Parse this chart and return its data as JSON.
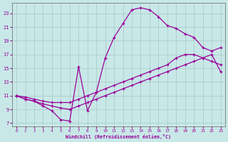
{
  "xlabel": "Windchill (Refroidissement éolien,°C)",
  "bg_color": "#c8e8e8",
  "line_color": "#990099",
  "grid_color": "#a8c8c8",
  "xlim": [
    -0.5,
    23.5
  ],
  "ylim": [
    6.5,
    24.5
  ],
  "xticks": [
    0,
    1,
    2,
    3,
    4,
    5,
    6,
    7,
    8,
    9,
    10,
    11,
    12,
    13,
    14,
    15,
    16,
    17,
    18,
    19,
    20,
    21,
    22,
    23
  ],
  "yticks": [
    7,
    9,
    11,
    13,
    15,
    17,
    19,
    21,
    23
  ],
  "series": [
    {
      "x": [
        0,
        1,
        2,
        3,
        4,
        5,
        6,
        7,
        8,
        9,
        10,
        11,
        12,
        13,
        14,
        15,
        16,
        17,
        18,
        19,
        20,
        21,
        22,
        23
      ],
      "y": [
        11,
        10.5,
        10.2,
        9.5,
        8.8,
        7.5,
        7.3,
        15.2,
        8.8,
        11.5,
        16.5,
        19.5,
        21.5,
        23.5,
        23.8,
        23.5,
        22.5,
        21.2,
        20.8,
        20.0,
        19.5,
        18.0,
        17.5,
        18.0
      ]
    },
    {
      "x": [
        0,
        1,
        2,
        3,
        4,
        5,
        6,
        7,
        8,
        9,
        10,
        11,
        12,
        13,
        14,
        15,
        16,
        17,
        18,
        19,
        20,
        21,
        22,
        23
      ],
      "y": [
        11,
        10.8,
        10.5,
        10.2,
        10.0,
        10.0,
        10.0,
        10.5,
        11.0,
        11.5,
        12.0,
        12.5,
        13.0,
        13.5,
        14.0,
        14.5,
        15.0,
        15.5,
        16.5,
        17.0,
        17.0,
        16.5,
        16.0,
        15.5
      ]
    },
    {
      "x": [
        0,
        1,
        2,
        3,
        4,
        5,
        6,
        7,
        8,
        9,
        10,
        11,
        12,
        13,
        14,
        15,
        16,
        17,
        18,
        19,
        20,
        21,
        22,
        23
      ],
      "y": [
        11,
        10.5,
        10.2,
        9.8,
        9.5,
        9.2,
        9.0,
        9.5,
        10.0,
        10.5,
        11.0,
        11.5,
        12.0,
        12.5,
        13.0,
        13.5,
        14.0,
        14.5,
        15.0,
        15.5,
        16.0,
        16.5,
        17.0,
        14.5
      ]
    }
  ]
}
